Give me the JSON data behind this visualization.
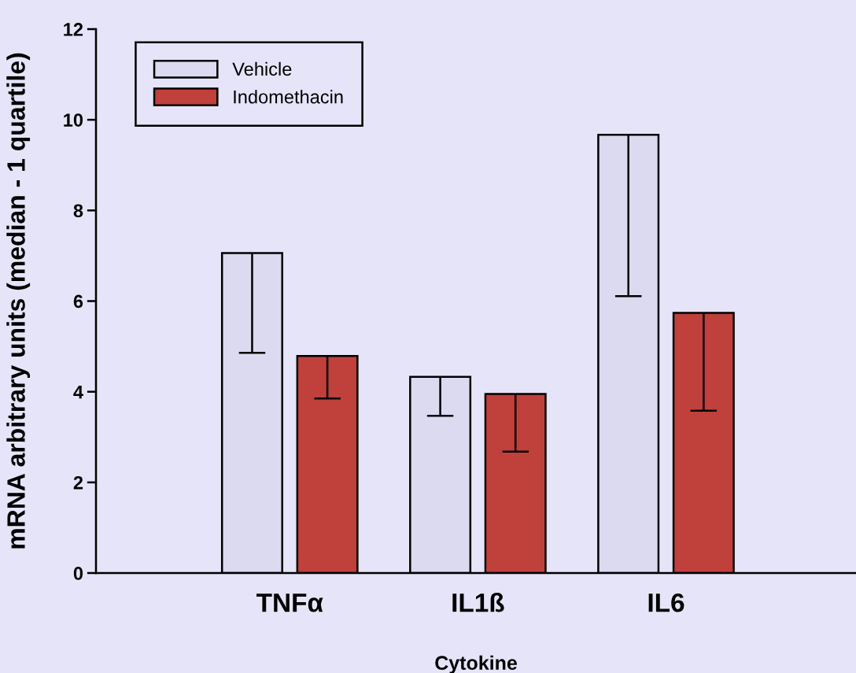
{
  "chart_data": {
    "type": "bar",
    "xlabel": "Cytokine",
    "ylabel": "mRNA arbitrary units (median - 1 quartile)",
    "categories": [
      "TNFα",
      "IL1ß",
      "IL6"
    ],
    "series": [
      {
        "name": "Vehicle",
        "color": "#dcdaf0",
        "values": [
          7.06,
          4.33,
          9.67
        ],
        "errors": [
          [
            4.86,
            7.06
          ],
          [
            3.47,
            4.33
          ],
          [
            6.11,
            9.67
          ]
        ]
      },
      {
        "name": "Indomethacin",
        "color": "#c0403c",
        "values": [
          4.79,
          3.95,
          5.74
        ],
        "errors": [
          [
            3.85,
            4.79
          ],
          [
            2.68,
            3.95
          ],
          [
            3.58,
            5.74
          ]
        ]
      }
    ],
    "ylim": [
      0,
      12
    ],
    "yticks": [
      0,
      2,
      4,
      6,
      8,
      10,
      12
    ],
    "grid": false,
    "legend": "top left"
  }
}
